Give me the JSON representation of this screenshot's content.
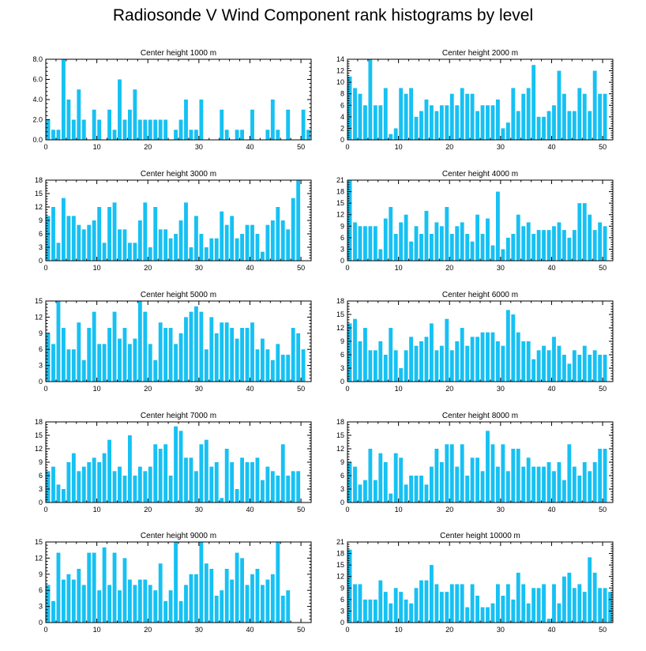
{
  "title": "Radiosonde V Wind Component rank histograms by level",
  "colors": {
    "bar": "#16C1F3",
    "bar_edge": "#FFFFFF",
    "axis": "#000000",
    "background": "#FFFFFF"
  },
  "chart_data": [
    {
      "type": "bar",
      "title": "Center height 1000 m",
      "xlim": [
        0,
        52
      ],
      "ylim": [
        0,
        8
      ],
      "xticks": [
        0,
        10,
        20,
        30,
        40,
        50
      ],
      "yticks": [
        0,
        2,
        4,
        6,
        8
      ],
      "ytick_labels": [
        "0.0",
        "2.0",
        "4.0",
        "6.0",
        "8.0"
      ],
      "values": [
        2,
        1,
        1,
        8,
        4,
        2,
        5,
        2,
        0,
        3,
        2,
        0,
        3,
        1,
        6,
        2,
        3,
        5,
        2,
        2,
        2,
        2,
        2,
        2,
        0,
        1,
        2,
        4,
        1,
        1,
        4,
        0,
        0,
        0,
        3,
        1,
        0,
        1,
        1,
        0,
        3,
        0,
        0,
        1,
        4,
        1,
        0,
        3,
        0,
        0,
        3,
        1
      ]
    },
    {
      "type": "bar",
      "title": "Center height 2000 m",
      "xlim": [
        0,
        52
      ],
      "ylim": [
        0,
        14
      ],
      "xticks": [
        0,
        10,
        20,
        30,
        40,
        50
      ],
      "yticks": [
        0,
        2,
        4,
        6,
        8,
        10,
        12,
        14
      ],
      "ytick_labels": [
        "0",
        "2",
        "4",
        "6",
        "8",
        "10",
        "12",
        "14"
      ],
      "values": [
        11,
        9,
        8,
        6,
        14,
        6,
        6,
        9,
        1,
        2,
        9,
        8,
        9,
        4,
        5,
        7,
        6,
        5,
        6,
        6,
        8,
        6,
        9,
        8,
        8,
        5,
        6,
        6,
        6,
        7,
        2,
        3,
        9,
        5,
        8,
        9,
        13,
        4,
        4,
        5,
        6,
        12,
        8,
        5,
        5,
        9,
        8,
        5,
        12,
        8,
        8,
        0
      ]
    },
    {
      "type": "bar",
      "title": "Center height 3000 m",
      "xlim": [
        0,
        52
      ],
      "ylim": [
        0,
        18
      ],
      "xticks": [
        0,
        10,
        20,
        30,
        40,
        50
      ],
      "yticks": [
        0,
        3,
        6,
        9,
        12,
        15,
        18
      ],
      "ytick_labels": [
        "0",
        "3",
        "6",
        "9",
        "12",
        "15",
        "18"
      ],
      "values": [
        10,
        12,
        4,
        14,
        10,
        10,
        8,
        7,
        8,
        9,
        12,
        4,
        12,
        13,
        7,
        7,
        4,
        4,
        9,
        13,
        3,
        12,
        7,
        7,
        5,
        6,
        9,
        13,
        3,
        10,
        6,
        3,
        5,
        5,
        11,
        8,
        10,
        5,
        6,
        8,
        8,
        6,
        2,
        8,
        9,
        12,
        9,
        7,
        14,
        18,
        0,
        0
      ]
    },
    {
      "type": "bar",
      "title": "Center height 4000 m",
      "xlim": [
        0,
        52
      ],
      "ylim": [
        0,
        21
      ],
      "xticks": [
        0,
        10,
        20,
        30,
        40,
        50
      ],
      "yticks": [
        0,
        3,
        6,
        9,
        12,
        15,
        18,
        21
      ],
      "ytick_labels": [
        "0",
        "3",
        "6",
        "9",
        "12",
        "15",
        "18",
        "21"
      ],
      "values": [
        21,
        10,
        9,
        9,
        9,
        9,
        3,
        11,
        14,
        7,
        10,
        12,
        5,
        9,
        7,
        13,
        7,
        10,
        9,
        14,
        7,
        9,
        10,
        7,
        5,
        12,
        7,
        11,
        4,
        18,
        3,
        6,
        7,
        12,
        9,
        10,
        7,
        8,
        8,
        8,
        9,
        10,
        8,
        6,
        8,
        15,
        15,
        12,
        8,
        10,
        9,
        0
      ]
    },
    {
      "type": "bar",
      "title": "Center height 5000 m",
      "xlim": [
        0,
        52
      ],
      "ylim": [
        0,
        15
      ],
      "xticks": [
        0,
        10,
        20,
        30,
        40,
        50
      ],
      "yticks": [
        0,
        3,
        6,
        9,
        12,
        15
      ],
      "ytick_labels": [
        "0",
        "3",
        "6",
        "9",
        "12",
        "15"
      ],
      "values": [
        9,
        7,
        15,
        10,
        6,
        6,
        11,
        4,
        10,
        13,
        7,
        7,
        10,
        13,
        8,
        10,
        7,
        8,
        15,
        13,
        7,
        4,
        11,
        10,
        10,
        7,
        9,
        12,
        13,
        14,
        13,
        6,
        12,
        9,
        11,
        11,
        10,
        8,
        10,
        10,
        11,
        6,
        8,
        6,
        4,
        7,
        5,
        5,
        10,
        9,
        6,
        0
      ]
    },
    {
      "type": "bar",
      "title": "Center height 6000 m",
      "xlim": [
        0,
        52
      ],
      "ylim": [
        0,
        18
      ],
      "xticks": [
        0,
        10,
        20,
        30,
        40,
        50
      ],
      "yticks": [
        0,
        3,
        6,
        9,
        12,
        15,
        18
      ],
      "ytick_labels": [
        "0",
        "3",
        "6",
        "9",
        "12",
        "15",
        "18"
      ],
      "values": [
        13,
        14,
        9,
        12,
        7,
        7,
        9,
        6,
        12,
        7,
        3,
        7,
        10,
        8,
        9,
        10,
        13,
        7,
        8,
        14,
        7,
        9,
        12,
        8,
        10,
        10,
        11,
        11,
        11,
        9,
        8,
        16,
        15,
        11,
        9,
        9,
        5,
        7,
        8,
        7,
        10,
        8,
        6,
        4,
        7,
        6,
        8,
        6,
        7,
        6,
        6,
        0
      ]
    },
    {
      "type": "bar",
      "title": "Center height 7000 m",
      "xlim": [
        0,
        52
      ],
      "ylim": [
        0,
        18
      ],
      "xticks": [
        0,
        10,
        20,
        30,
        40,
        50
      ],
      "yticks": [
        0,
        3,
        6,
        9,
        12,
        15,
        18
      ],
      "ytick_labels": [
        "0",
        "3",
        "6",
        "9",
        "12",
        "15",
        "18"
      ],
      "values": [
        7,
        8,
        4,
        3,
        9,
        11,
        7,
        8,
        9,
        10,
        9,
        11,
        14,
        7,
        8,
        6,
        15,
        6,
        8,
        7,
        8,
        13,
        12,
        13,
        6,
        17,
        16,
        10,
        10,
        7,
        13,
        14,
        8,
        9,
        1,
        12,
        9,
        3,
        10,
        9,
        9,
        10,
        5,
        8,
        7,
        6,
        13,
        6,
        7,
        7,
        0,
        0
      ]
    },
    {
      "type": "bar",
      "title": "Center height 8000 m",
      "xlim": [
        0,
        52
      ],
      "ylim": [
        0,
        18
      ],
      "xticks": [
        0,
        10,
        20,
        30,
        40,
        50
      ],
      "yticks": [
        0,
        3,
        6,
        9,
        12,
        15,
        18
      ],
      "ytick_labels": [
        "0",
        "3",
        "6",
        "9",
        "12",
        "15",
        "18"
      ],
      "values": [
        9,
        8,
        4,
        5,
        12,
        5,
        11,
        9,
        2,
        11,
        10,
        4,
        6,
        6,
        6,
        4,
        8,
        12,
        9,
        13,
        13,
        8,
        13,
        6,
        10,
        10,
        7,
        16,
        13,
        8,
        13,
        7,
        12,
        12,
        8,
        10,
        8,
        8,
        8,
        9,
        7,
        9,
        5,
        13,
        8,
        6,
        9,
        7,
        9,
        12,
        12,
        0
      ]
    },
    {
      "type": "bar",
      "title": "Center height 9000 m",
      "xlim": [
        0,
        52
      ],
      "ylim": [
        0,
        15
      ],
      "xticks": [
        0,
        10,
        20,
        30,
        40,
        50
      ],
      "yticks": [
        0,
        3,
        6,
        9,
        12,
        15
      ],
      "ytick_labels": [
        "0",
        "3",
        "6",
        "9",
        "12",
        "15"
      ],
      "values": [
        7,
        4,
        13,
        8,
        9,
        8,
        10,
        7,
        13,
        13,
        6,
        14,
        7,
        13,
        6,
        12,
        8,
        7,
        8,
        8,
        7,
        6,
        11,
        4,
        6,
        15,
        4,
        7,
        9,
        9,
        15,
        11,
        10,
        5,
        6,
        10,
        8,
        13,
        12,
        7,
        9,
        10,
        7,
        8,
        9,
        15,
        5,
        6,
        0,
        0,
        0,
        0
      ]
    },
    {
      "type": "bar",
      "title": "Center height 10000 m",
      "xlim": [
        0,
        52
      ],
      "ylim": [
        0,
        21
      ],
      "xticks": [
        0,
        10,
        20,
        30,
        40,
        50
      ],
      "yticks": [
        0,
        3,
        6,
        9,
        12,
        15,
        18,
        21
      ],
      "ytick_labels": [
        "0",
        "3",
        "6",
        "9",
        "12",
        "15",
        "18",
        "21"
      ],
      "values": [
        19,
        10,
        10,
        6,
        6,
        6,
        11,
        8,
        5,
        9,
        8,
        6,
        5,
        9,
        11,
        11,
        15,
        10,
        8,
        8,
        10,
        10,
        10,
        4,
        10,
        7,
        4,
        4,
        5,
        10,
        7,
        10,
        6,
        13,
        10,
        5,
        9,
        9,
        10,
        1,
        10,
        5,
        12,
        13,
        9,
        10,
        8,
        17,
        13,
        9,
        9,
        8
      ]
    }
  ]
}
